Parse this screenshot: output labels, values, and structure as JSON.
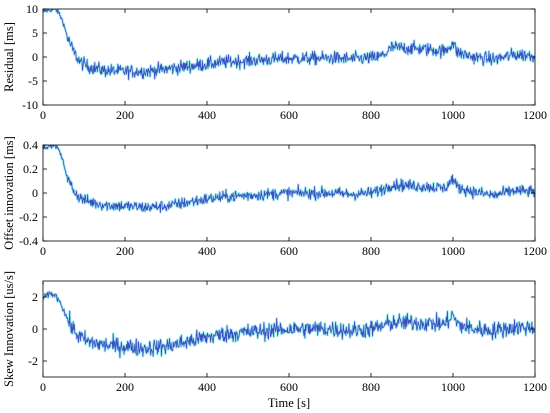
{
  "chart_data": [
    {
      "type": "line",
      "ylabel": "Residual [ms]",
      "xlabel": "",
      "xlim": [
        0,
        1200
      ],
      "ylim": [
        -10,
        10
      ],
      "xticks": [
        0,
        200,
        400,
        600,
        800,
        1000,
        1200
      ],
      "yticks": [
        10,
        5,
        0,
        -5,
        -10
      ],
      "grid": false,
      "series": [
        {
          "style": "noisy",
          "color": "#3a4fbf",
          "halo_color": "#38d6e3",
          "x": [
            0,
            30,
            40,
            50,
            60,
            75,
            90,
            110,
            150,
            200,
            250,
            300,
            350,
            400,
            450,
            500,
            550,
            600,
            650,
            700,
            750,
            800,
            820,
            840,
            850,
            900,
            950,
            980,
            1000,
            1010,
            1050,
            1100,
            1150,
            1200
          ],
          "y": [
            9.5,
            10,
            9,
            7,
            4,
            1,
            -1,
            -2,
            -2.8,
            -3,
            -3,
            -2.5,
            -2,
            -1.5,
            -1,
            -0.8,
            -0.5,
            -0.3,
            -0.3,
            -0.2,
            -0.4,
            -0.2,
            0,
            1,
            2,
            1.8,
            1.5,
            1.2,
            3,
            1,
            0,
            -0.5,
            0.5,
            0.3
          ],
          "noise": 1.4
        }
      ]
    },
    {
      "type": "line",
      "ylabel": "Offset innovation [ms]",
      "xlabel": "",
      "xlim": [
        0,
        1200
      ],
      "ylim": [
        -0.4,
        0.4
      ],
      "xticks": [
        0,
        200,
        400,
        600,
        800,
        1000,
        1200
      ],
      "yticks": [
        0.4,
        0.2,
        0,
        -0.2,
        -0.4
      ],
      "grid": false,
      "series": [
        {
          "style": "noisy",
          "color": "#3a4fbf",
          "halo_color": "#38d6e3",
          "x": [
            0,
            30,
            40,
            50,
            60,
            75,
            90,
            110,
            150,
            200,
            250,
            300,
            350,
            400,
            450,
            500,
            550,
            600,
            650,
            700,
            750,
            800,
            820,
            840,
            850,
            900,
            950,
            980,
            1000,
            1010,
            1050,
            1100,
            1150,
            1200
          ],
          "y": [
            0.38,
            0.4,
            0.35,
            0.25,
            0.12,
            0.02,
            -0.04,
            -0.07,
            -0.1,
            -0.11,
            -0.12,
            -0.11,
            -0.08,
            -0.05,
            -0.03,
            -0.02,
            -0.01,
            0,
            0,
            0,
            -0.01,
            0,
            0.02,
            0.05,
            0.07,
            0.06,
            0.05,
            0.04,
            0.12,
            0.05,
            0.01,
            -0.02,
            0.02,
            0.01
          ],
          "noise": 0.05
        }
      ]
    },
    {
      "type": "line",
      "ylabel": "Skew Innovation [us/s]",
      "xlabel": "Time [s]",
      "xlim": [
        0,
        1200
      ],
      "ylim": [
        -3,
        3
      ],
      "xticks": [
        0,
        200,
        400,
        600,
        800,
        1000,
        1200
      ],
      "yticks": [
        2,
        0,
        -2
      ],
      "grid": false,
      "series": [
        {
          "style": "noisy",
          "color": "#3a4fbf",
          "halo_color": "#38d6e3",
          "x": [
            0,
            10,
            20,
            30,
            40,
            50,
            60,
            75,
            90,
            110,
            150,
            200,
            250,
            300,
            350,
            400,
            450,
            500,
            550,
            600,
            650,
            700,
            750,
            800,
            820,
            840,
            850,
            900,
            950,
            980,
            1000,
            1010,
            1050,
            1100,
            1150,
            1200
          ],
          "y": [
            1.9,
            2.1,
            2.2,
            2.1,
            1.8,
            1.2,
            0.6,
            -0.1,
            -0.5,
            -0.8,
            -1,
            -1.1,
            -1.2,
            -1.1,
            -0.8,
            -0.5,
            -0.3,
            -0.2,
            -0.1,
            0,
            0,
            0,
            -0.1,
            0,
            0.1,
            0.3,
            0.4,
            0.4,
            0.35,
            0.3,
            0.9,
            0.3,
            0,
            -0.1,
            0.1,
            0.1
          ],
          "noise": 0.55
        }
      ]
    }
  ]
}
